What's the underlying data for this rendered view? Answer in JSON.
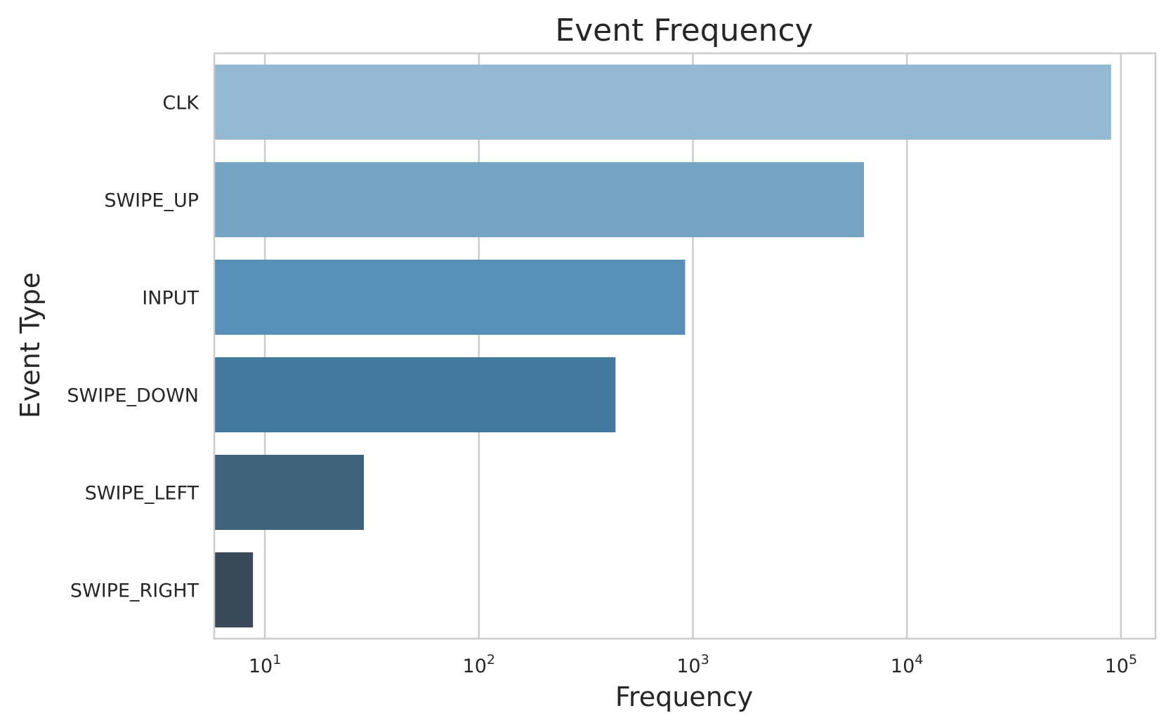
{
  "chart_data": {
    "type": "bar",
    "orientation": "horizontal",
    "title": "Event Frequency",
    "xlabel": "Frequency",
    "ylabel": "Event Type",
    "x_scale": "log",
    "xlim": [
      5.8,
      145000
    ],
    "x_ticks": [
      10,
      100,
      1000,
      10000,
      100000
    ],
    "x_tick_labels": [
      {
        "base": "10",
        "exp": "1"
      },
      {
        "base": "10",
        "exp": "2"
      },
      {
        "base": "10",
        "exp": "3"
      },
      {
        "base": "10",
        "exp": "4"
      },
      {
        "base": "10",
        "exp": "5"
      }
    ],
    "grid": true,
    "categories": [
      "CLK",
      "SWIPE_UP",
      "INPUT",
      "SWIPE_DOWN",
      "SWIPE_LEFT",
      "SWIPE_RIGHT"
    ],
    "values": [
      90000,
      6300,
      920,
      435,
      29,
      8.8
    ],
    "colors": [
      "#96b9d3",
      "#76a5c4",
      "#578fb6",
      "#44789d",
      "#3f6179",
      "#394957"
    ]
  }
}
